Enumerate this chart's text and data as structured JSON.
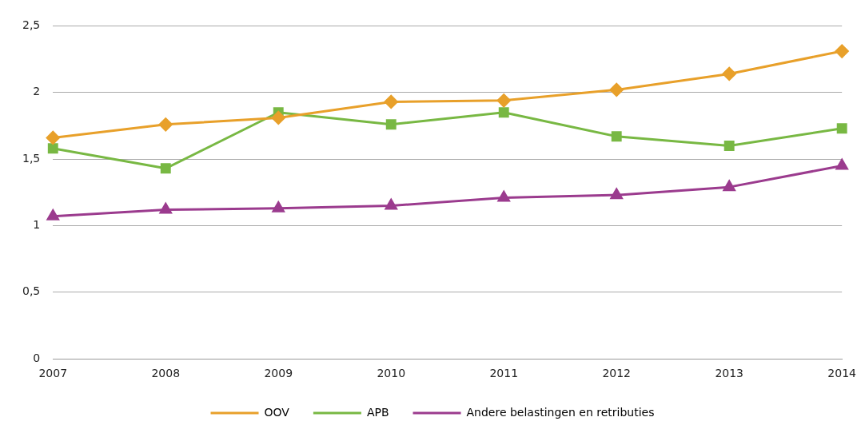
{
  "chart_data": {
    "type": "line",
    "categories": [
      "2007",
      "2008",
      "2009",
      "2010",
      "2011",
      "2012",
      "2013",
      "2014"
    ],
    "series": [
      {
        "name": "OOV",
        "color": "#e8a02a",
        "marker": "diamond",
        "values": [
          1.66,
          1.76,
          1.81,
          1.93,
          1.94,
          2.02,
          2.14,
          2.31
        ]
      },
      {
        "name": "APB",
        "color": "#78b843",
        "marker": "square",
        "values": [
          1.58,
          1.43,
          1.85,
          1.76,
          1.85,
          1.67,
          1.6,
          1.73
        ]
      },
      {
        "name": "Andere belastingen en retributies",
        "color": "#9b3b8e",
        "marker": "triangle",
        "values": [
          1.07,
          1.12,
          1.13,
          1.15,
          1.21,
          1.23,
          1.29,
          1.45
        ]
      }
    ],
    "ylim": [
      0,
      2.5
    ],
    "yticks": [
      0,
      {
        "value": 0.5,
        "label": "0,5"
      },
      1,
      {
        "value": 1.5,
        "label": "1,5"
      },
      2,
      {
        "value": 2.5,
        "label": "2,5"
      }
    ],
    "grid": "y",
    "legend": "bottom",
    "line_style": "solid"
  }
}
